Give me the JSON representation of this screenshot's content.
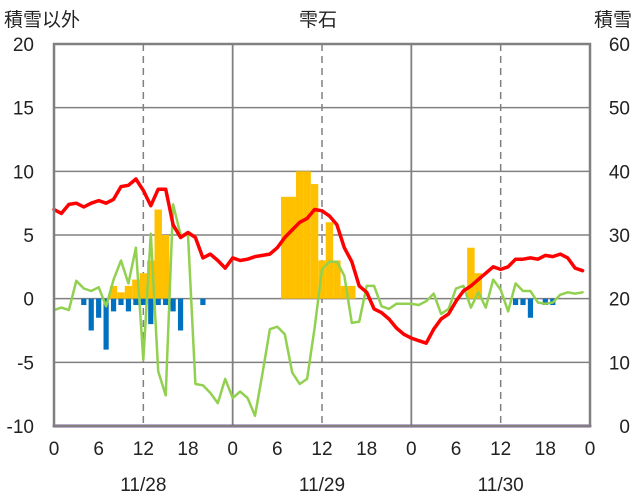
{
  "chart_data": {
    "type": "bar+line",
    "title": "雫石",
    "y_left_label": "積雪以外",
    "y_right_label": "積雪",
    "ylim_left": [
      -10,
      20
    ],
    "ylim_right": [
      0,
      60
    ],
    "yticks_left": [
      "20",
      "15",
      "10",
      "5",
      "0",
      "-5",
      "-10"
    ],
    "yticks_right": [
      "60",
      "50",
      "40",
      "30",
      "20",
      "10",
      "0"
    ],
    "x_hour_ticks": [
      "0",
      "6",
      "12",
      "18",
      "0",
      "6",
      "12",
      "18",
      "0",
      "6",
      "12",
      "18",
      "0"
    ],
    "date_labels": [
      "11/28",
      "11/29",
      "11/30"
    ],
    "x_unit": "hours since 11/28 0:00",
    "x_range": [
      0,
      72
    ],
    "grid": "day lines solid, 12:00 lines dashed, horizontal lines at each y tick",
    "colors": {
      "temperature": "#ff0000",
      "wind_or_other": "#92d050",
      "snowfall": "#ffc000",
      "precip": "#0070c0",
      "snow_depth": "#7030a0",
      "grid": "#808080"
    },
    "snowfall_bars": {
      "axis": "left",
      "hours": [
        8,
        9,
        10,
        11,
        12,
        13,
        14,
        15,
        31,
        32,
        33,
        34,
        35,
        36,
        37,
        38,
        39,
        40,
        56,
        57
      ],
      "values": [
        1,
        0.5,
        1,
        1.5,
        2,
        3,
        7,
        5,
        8,
        8,
        10,
        10,
        9,
        3,
        6,
        3,
        1,
        1,
        4,
        2
      ]
    },
    "precip_bars": {
      "axis": "left",
      "hours": [
        4,
        5,
        6,
        7,
        8,
        9,
        10,
        11,
        12,
        13,
        14,
        15,
        16,
        17,
        20,
        62,
        63,
        64,
        66,
        67
      ],
      "values": [
        -0.5,
        -2.5,
        -1.5,
        -4,
        -1,
        -0.5,
        -1,
        -0.5,
        -0.5,
        -2,
        -0.5,
        -0.5,
        -1,
        -2.5,
        -0.5,
        -0.5,
        -0.5,
        -1.5,
        -0.5,
        -0.5
      ]
    },
    "temperature_line": {
      "axis": "left",
      "x": [
        0,
        1,
        2,
        3,
        4,
        5,
        6,
        7,
        8,
        9,
        10,
        11,
        12,
        13,
        14,
        15,
        16,
        17,
        18,
        19,
        20,
        21,
        22,
        23,
        24,
        25,
        26,
        27,
        28,
        29,
        30,
        31,
        32,
        33,
        34,
        35,
        36,
        37,
        38,
        39,
        40,
        41,
        42,
        43,
        44,
        45,
        46,
        47,
        48,
        49,
        50,
        51,
        52,
        53,
        54,
        55,
        56,
        57,
        58,
        59,
        60,
        61,
        62,
        63,
        64,
        65,
        66,
        67,
        68,
        69,
        70,
        71
      ],
      "y": [
        7,
        6.7,
        7.4,
        7.5,
        7.2,
        7.5,
        7.7,
        7.5,
        7.8,
        8.8,
        8.9,
        9.4,
        8.5,
        7.3,
        8.6,
        8.6,
        5.8,
        4.8,
        5.2,
        4.8,
        3.2,
        3.5,
        3.0,
        2.4,
        3.2,
        3.0,
        3.1,
        3.3,
        3.4,
        3.5,
        4.0,
        4.8,
        5.4,
        6.0,
        6.3,
        7.0,
        6.9,
        6.5,
        5.8,
        4.0,
        2.9,
        1.0,
        0.5,
        -0.8,
        -1.1,
        -1.6,
        -2.3,
        -2.8,
        -3.1,
        -3.3,
        -3.5,
        -2.4,
        -1.6,
        -1.2,
        -0.2,
        0.6,
        1.0,
        1.5,
        2.0,
        2.5,
        2.3,
        2.5,
        3.1,
        3.1,
        3.2,
        3.1,
        3.4,
        3.3,
        3.5,
        3.2,
        2.4,
        2.2
      ]
    },
    "green_line": {
      "axis": "left",
      "x": [
        0,
        1,
        2,
        3,
        4,
        5,
        6,
        7,
        8,
        9,
        10,
        11,
        12,
        13,
        14,
        15,
        16,
        17,
        18,
        19,
        20,
        21,
        22,
        23,
        24,
        25,
        26,
        27,
        28,
        29,
        30,
        31,
        32,
        33,
        34,
        35,
        36,
        37,
        38,
        39,
        40,
        41,
        42,
        43,
        44,
        45,
        46,
        47,
        48,
        49,
        50,
        51,
        52,
        53,
        54,
        55,
        56,
        57,
        58,
        59,
        60,
        61,
        62,
        63,
        64,
        65,
        66,
        67,
        68,
        69,
        70,
        71
      ],
      "y": [
        -0.9,
        -0.7,
        -0.9,
        1.4,
        0.8,
        0.6,
        0.9,
        -0.6,
        1.5,
        3.0,
        1.2,
        4.0,
        -4.8,
        5.1,
        -5.7,
        -7.6,
        7.4,
        5.0,
        5.0,
        -6.7,
        -6.8,
        -7.4,
        -8.2,
        -6.3,
        -7.8,
        -7.3,
        -7.8,
        -9.2,
        -5.9,
        -2.4,
        -2.2,
        -2.8,
        -5.8,
        -6.7,
        -6.3,
        -2.3,
        2.3,
        2.9,
        2.9,
        1.8,
        -1.9,
        -1.8,
        1.0,
        1.0,
        -0.6,
        -0.8,
        -0.4,
        -0.4,
        -0.4,
        -0.5,
        -0.2,
        0.4,
        -1.2,
        -0.8,
        0.8,
        1.0,
        -0.7,
        0.5,
        -0.7,
        1.5,
        0.7,
        -1.0,
        1.2,
        0.6,
        0.6,
        -0.3,
        -0.4,
        -0.3,
        0.3,
        0.5,
        0.4,
        0.5
      ]
    },
    "snow_depth_line": {
      "axis": "right",
      "x": [
        0,
        72
      ],
      "y": [
        0,
        0
      ]
    }
  }
}
